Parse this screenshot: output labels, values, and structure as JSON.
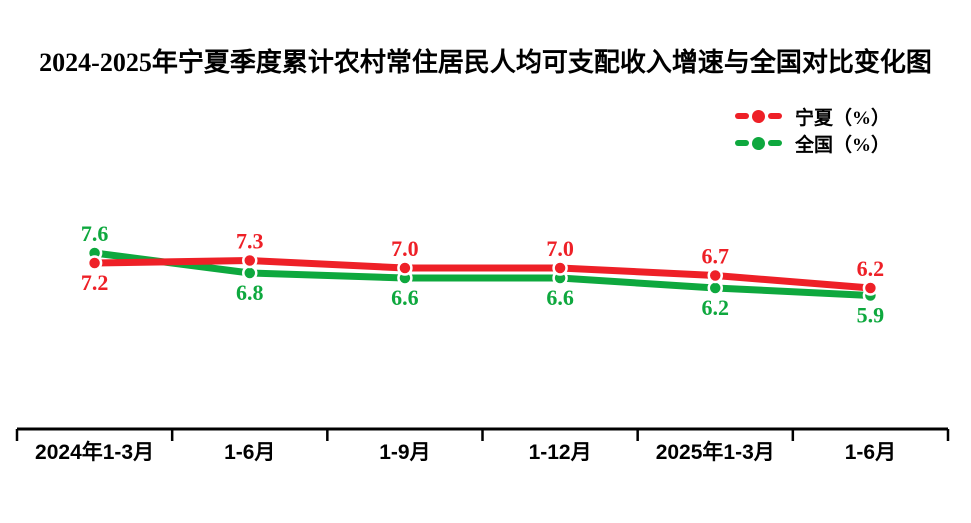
{
  "title": "2024-2025年宁夏季度累计农村常住居民人均可支配收入增速与全国对比变化图",
  "background_color": "#ffffff",
  "chart_data": {
    "type": "line",
    "title": "2024-2025年宁夏季度累计农村常住居民人均可支配收入增速与全国对比变化图",
    "categories": [
      "2024年1-3月",
      "1-6月",
      "1-9月",
      "1-12月",
      "2025年1-3月",
      "1-6月"
    ],
    "series": [
      {
        "name": "宁夏（%）",
        "color": "#ee2027",
        "values": [
          7.2,
          7.3,
          7.0,
          7.0,
          6.7,
          6.2
        ],
        "label_sides": [
          "below",
          "above",
          "above",
          "above",
          "above",
          "above"
        ]
      },
      {
        "name": "全国（%）",
        "color": "#0ea83e",
        "values": [
          7.6,
          6.8,
          6.6,
          6.6,
          6.2,
          5.9
        ],
        "label_sides": [
          "above",
          "below",
          "below",
          "below",
          "below",
          "below"
        ]
      }
    ],
    "data_labels": true,
    "label_decimals": 1,
    "grid": false,
    "y_axis_visible": false,
    "x_axis_visible": true,
    "axis_color": "#000000",
    "legend_position": "top-right",
    "xlabel": "",
    "ylabel": ""
  }
}
